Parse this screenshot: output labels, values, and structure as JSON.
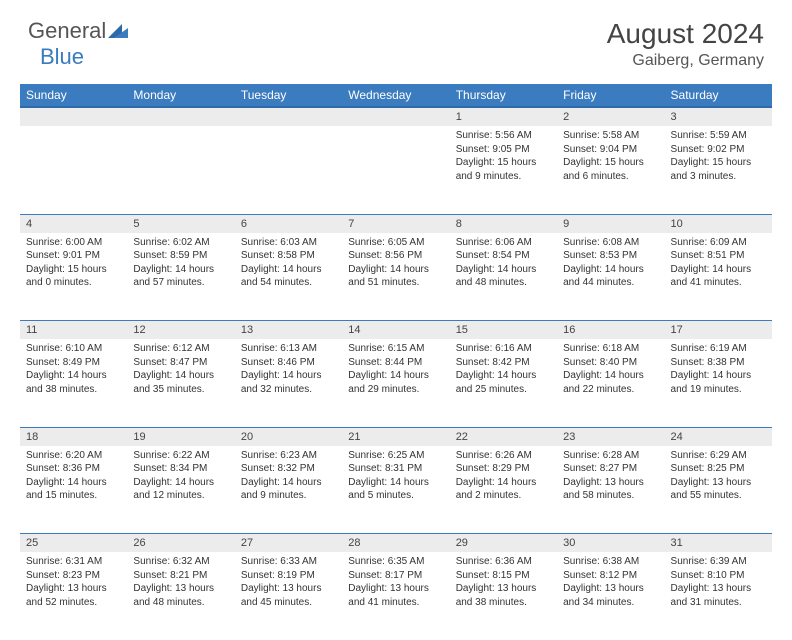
{
  "logo": {
    "text1": "General",
    "text2": "Blue"
  },
  "title": {
    "month": "August 2024",
    "location": "Gaiberg, Germany"
  },
  "colors": {
    "header_bg": "#3b7bbf",
    "header_text": "#ffffff",
    "daynum_bg": "#ececec",
    "border": "#3b7bbf",
    "text": "#333333"
  },
  "weekdays": [
    "Sunday",
    "Monday",
    "Tuesday",
    "Wednesday",
    "Thursday",
    "Friday",
    "Saturday"
  ],
  "weeks": [
    [
      null,
      null,
      null,
      null,
      {
        "d": "1",
        "sr": "5:56 AM",
        "ss": "9:05 PM",
        "dl": "15 hours and 9 minutes."
      },
      {
        "d": "2",
        "sr": "5:58 AM",
        "ss": "9:04 PM",
        "dl": "15 hours and 6 minutes."
      },
      {
        "d": "3",
        "sr": "5:59 AM",
        "ss": "9:02 PM",
        "dl": "15 hours and 3 minutes."
      }
    ],
    [
      {
        "d": "4",
        "sr": "6:00 AM",
        "ss": "9:01 PM",
        "dl": "15 hours and 0 minutes."
      },
      {
        "d": "5",
        "sr": "6:02 AM",
        "ss": "8:59 PM",
        "dl": "14 hours and 57 minutes."
      },
      {
        "d": "6",
        "sr": "6:03 AM",
        "ss": "8:58 PM",
        "dl": "14 hours and 54 minutes."
      },
      {
        "d": "7",
        "sr": "6:05 AM",
        "ss": "8:56 PM",
        "dl": "14 hours and 51 minutes."
      },
      {
        "d": "8",
        "sr": "6:06 AM",
        "ss": "8:54 PM",
        "dl": "14 hours and 48 minutes."
      },
      {
        "d": "9",
        "sr": "6:08 AM",
        "ss": "8:53 PM",
        "dl": "14 hours and 44 minutes."
      },
      {
        "d": "10",
        "sr": "6:09 AM",
        "ss": "8:51 PM",
        "dl": "14 hours and 41 minutes."
      }
    ],
    [
      {
        "d": "11",
        "sr": "6:10 AM",
        "ss": "8:49 PM",
        "dl": "14 hours and 38 minutes."
      },
      {
        "d": "12",
        "sr": "6:12 AM",
        "ss": "8:47 PM",
        "dl": "14 hours and 35 minutes."
      },
      {
        "d": "13",
        "sr": "6:13 AM",
        "ss": "8:46 PM",
        "dl": "14 hours and 32 minutes."
      },
      {
        "d": "14",
        "sr": "6:15 AM",
        "ss": "8:44 PM",
        "dl": "14 hours and 29 minutes."
      },
      {
        "d": "15",
        "sr": "6:16 AM",
        "ss": "8:42 PM",
        "dl": "14 hours and 25 minutes."
      },
      {
        "d": "16",
        "sr": "6:18 AM",
        "ss": "8:40 PM",
        "dl": "14 hours and 22 minutes."
      },
      {
        "d": "17",
        "sr": "6:19 AM",
        "ss": "8:38 PM",
        "dl": "14 hours and 19 minutes."
      }
    ],
    [
      {
        "d": "18",
        "sr": "6:20 AM",
        "ss": "8:36 PM",
        "dl": "14 hours and 15 minutes."
      },
      {
        "d": "19",
        "sr": "6:22 AM",
        "ss": "8:34 PM",
        "dl": "14 hours and 12 minutes."
      },
      {
        "d": "20",
        "sr": "6:23 AM",
        "ss": "8:32 PM",
        "dl": "14 hours and 9 minutes."
      },
      {
        "d": "21",
        "sr": "6:25 AM",
        "ss": "8:31 PM",
        "dl": "14 hours and 5 minutes."
      },
      {
        "d": "22",
        "sr": "6:26 AM",
        "ss": "8:29 PM",
        "dl": "14 hours and 2 minutes."
      },
      {
        "d": "23",
        "sr": "6:28 AM",
        "ss": "8:27 PM",
        "dl": "13 hours and 58 minutes."
      },
      {
        "d": "24",
        "sr": "6:29 AM",
        "ss": "8:25 PM",
        "dl": "13 hours and 55 minutes."
      }
    ],
    [
      {
        "d": "25",
        "sr": "6:31 AM",
        "ss": "8:23 PM",
        "dl": "13 hours and 52 minutes."
      },
      {
        "d": "26",
        "sr": "6:32 AM",
        "ss": "8:21 PM",
        "dl": "13 hours and 48 minutes."
      },
      {
        "d": "27",
        "sr": "6:33 AM",
        "ss": "8:19 PM",
        "dl": "13 hours and 45 minutes."
      },
      {
        "d": "28",
        "sr": "6:35 AM",
        "ss": "8:17 PM",
        "dl": "13 hours and 41 minutes."
      },
      {
        "d": "29",
        "sr": "6:36 AM",
        "ss": "8:15 PM",
        "dl": "13 hours and 38 minutes."
      },
      {
        "d": "30",
        "sr": "6:38 AM",
        "ss": "8:12 PM",
        "dl": "13 hours and 34 minutes."
      },
      {
        "d": "31",
        "sr": "6:39 AM",
        "ss": "8:10 PM",
        "dl": "13 hours and 31 minutes."
      }
    ]
  ],
  "labels": {
    "sunrise": "Sunrise:",
    "sunset": "Sunset:",
    "daylight": "Daylight:"
  }
}
